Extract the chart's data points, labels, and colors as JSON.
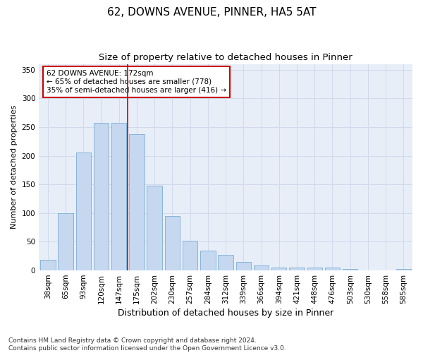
{
  "title1": "62, DOWNS AVENUE, PINNER, HA5 5AT",
  "title2": "Size of property relative to detached houses in Pinner",
  "xlabel": "Distribution of detached houses by size in Pinner",
  "ylabel": "Number of detached properties",
  "categories": [
    "38sqm",
    "65sqm",
    "93sqm",
    "120sqm",
    "147sqm",
    "175sqm",
    "202sqm",
    "230sqm",
    "257sqm",
    "284sqm",
    "312sqm",
    "339sqm",
    "366sqm",
    "394sqm",
    "421sqm",
    "448sqm",
    "476sqm",
    "503sqm",
    "530sqm",
    "558sqm",
    "585sqm"
  ],
  "values": [
    18,
    100,
    205,
    257,
    257,
    237,
    148,
    95,
    52,
    35,
    27,
    15,
    9,
    5,
    5,
    5,
    5,
    2,
    0,
    0,
    3
  ],
  "bar_color": "#c5d8f0",
  "bar_edge_color": "#7aadd4",
  "grid_color": "#d0daea",
  "background_color": "#e8eef8",
  "vline_x_index": 5,
  "vline_color": "#cc0000",
  "annotation_text": "62 DOWNS AVENUE: 172sqm\n← 65% of detached houses are smaller (778)\n35% of semi-detached houses are larger (416) →",
  "annotation_box_facecolor": "#ffffff",
  "annotation_box_edgecolor": "#cc0000",
  "footer_text": "Contains HM Land Registry data © Crown copyright and database right 2024.\nContains public sector information licensed under the Open Government Licence v3.0.",
  "ylim": [
    0,
    360
  ],
  "yticks": [
    0,
    50,
    100,
    150,
    200,
    250,
    300,
    350
  ],
  "title1_fontsize": 11,
  "title2_fontsize": 9.5,
  "xlabel_fontsize": 9,
  "ylabel_fontsize": 8,
  "tick_fontsize": 7.5,
  "ann_fontsize": 7.5,
  "footer_fontsize": 6.5
}
